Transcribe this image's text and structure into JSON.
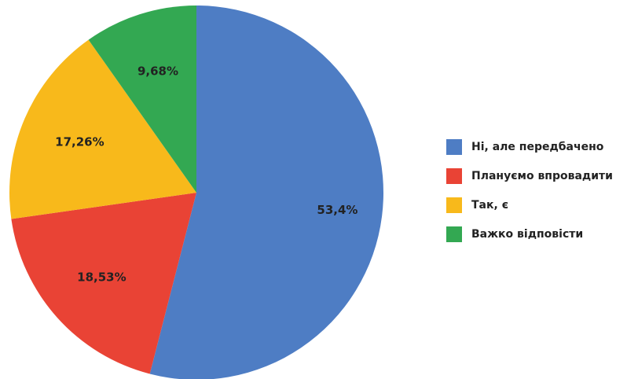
{
  "chart_data": {
    "type": "pie",
    "categories": [
      "Ні, але передбачено",
      "Плануємо впровадити",
      "Так, є",
      "Важко відповісти"
    ],
    "values": [
      53.4,
      18.53,
      17.26,
      9.68
    ],
    "value_labels": [
      "53,4%",
      "18,53%",
      "17,26%",
      "9,68%"
    ],
    "colors": [
      "#4e7dc4",
      "#e94335",
      "#f8b91b",
      "#33a852"
    ],
    "legend": "right"
  }
}
